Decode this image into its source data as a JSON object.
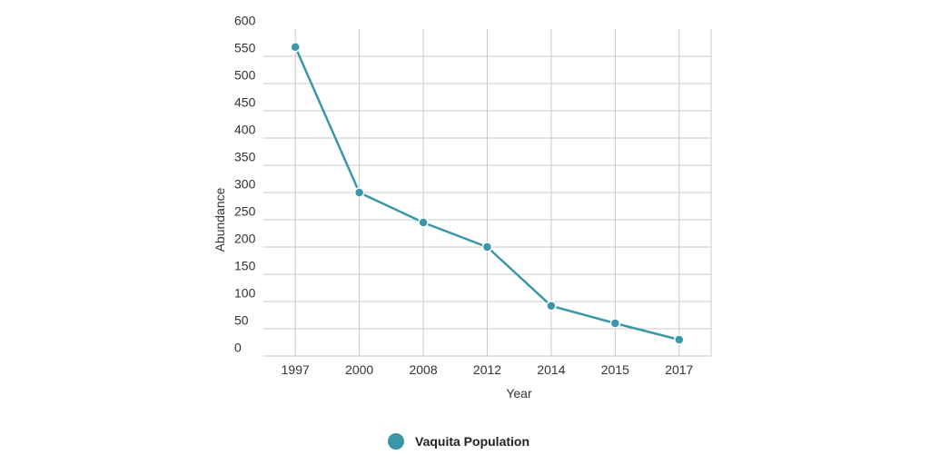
{
  "chart_data": {
    "type": "line",
    "title": "",
    "xlabel": "Year",
    "ylabel": "Abundance",
    "ylim": [
      0,
      600
    ],
    "yticks": [
      0,
      50,
      100,
      150,
      200,
      250,
      300,
      350,
      400,
      450,
      500,
      550,
      600
    ],
    "categories": [
      "1997",
      "2000",
      "2008",
      "2012",
      "2014",
      "2015",
      "2017"
    ],
    "grid": true,
    "legend_position": "bottom",
    "series": [
      {
        "name": "Vaquita Population",
        "color": "#3a96a8",
        "values": [
          567,
          300,
          245,
          200,
          92,
          60,
          30
        ]
      }
    ]
  }
}
